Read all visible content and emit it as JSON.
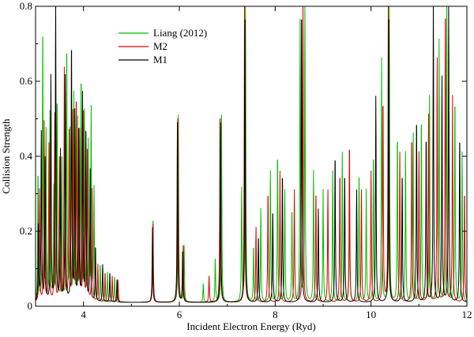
{
  "chart_data": {
    "type": "line",
    "title": "",
    "xlabel": "Incident Electron Energy (Ryd)",
    "ylabel": "Collision Strength",
    "xlim": [
      3,
      12
    ],
    "ylim": [
      0,
      0.8
    ],
    "x_ticks": [
      4,
      6,
      8,
      10,
      12
    ],
    "y_ticks": [
      0,
      0.2,
      0.4,
      0.6,
      0.8
    ],
    "x_tick_labels": [
      "4",
      "6",
      "8",
      "10",
      "12"
    ],
    "y_tick_labels": [
      "0",
      "0.2",
      "0.4",
      "0.6",
      "0.8"
    ],
    "grid": false,
    "legend_position": "top-left",
    "background_level": 0.01,
    "series": [
      {
        "name": "Liang (2012)",
        "color": "#00c000",
        "peaks": [
          [
            3.05,
            0.35
          ],
          [
            3.15,
            0.74
          ],
          [
            3.22,
            0.45
          ],
          [
            3.3,
            0.5
          ],
          [
            3.38,
            0.3
          ],
          [
            3.45,
            0.55
          ],
          [
            3.55,
            0.4
          ],
          [
            3.65,
            0.69
          ],
          [
            3.72,
            0.45
          ],
          [
            3.8,
            0.55
          ],
          [
            3.88,
            0.48
          ],
          [
            3.95,
            0.6
          ],
          [
            4.02,
            0.5
          ],
          [
            4.1,
            0.42
          ],
          [
            4.16,
            0.51
          ],
          [
            4.22,
            0.3
          ],
          [
            4.35,
            0.1
          ],
          [
            4.5,
            0.08
          ],
          [
            4.65,
            0.07
          ],
          [
            5.45,
            0.23
          ],
          [
            5.98,
            0.5
          ],
          [
            6.1,
            0.15
          ],
          [
            6.5,
            0.05
          ],
          [
            6.75,
            0.12
          ],
          [
            6.88,
            0.5
          ],
          [
            7.3,
            0.3
          ],
          [
            7.38,
            0.8
          ],
          [
            7.55,
            0.15
          ],
          [
            7.7,
            0.25
          ],
          [
            7.9,
            0.35
          ],
          [
            8.05,
            0.4
          ],
          [
            8.2,
            0.3
          ],
          [
            8.35,
            0.25
          ],
          [
            8.52,
            0.75
          ],
          [
            8.62,
            0.8
          ],
          [
            8.8,
            0.35
          ],
          [
            9.0,
            0.3
          ],
          [
            9.2,
            0.35
          ],
          [
            9.4,
            0.4
          ],
          [
            9.55,
            0.3
          ],
          [
            9.75,
            0.35
          ],
          [
            9.9,
            0.3
          ],
          [
            10.05,
            0.4
          ],
          [
            10.22,
            0.65
          ],
          [
            10.38,
            0.8
          ],
          [
            10.55,
            0.45
          ],
          [
            10.72,
            0.4
          ],
          [
            10.88,
            0.45
          ],
          [
            11.05,
            0.5
          ],
          [
            11.22,
            0.55
          ],
          [
            11.42,
            0.7
          ],
          [
            11.58,
            0.8
          ],
          [
            11.75,
            0.55
          ],
          [
            11.9,
            0.4
          ]
        ]
      },
      {
        "name": "M2",
        "color": "#e00000",
        "peaks": [
          [
            3.08,
            0.3
          ],
          [
            3.18,
            0.48
          ],
          [
            3.28,
            0.42
          ],
          [
            3.4,
            0.5
          ],
          [
            3.5,
            0.38
          ],
          [
            3.6,
            0.62
          ],
          [
            3.7,
            0.45
          ],
          [
            3.78,
            0.5
          ],
          [
            3.85,
            0.55
          ],
          [
            3.92,
            0.45
          ],
          [
            4.0,
            0.5
          ],
          [
            4.08,
            0.4
          ],
          [
            4.18,
            0.3
          ],
          [
            4.3,
            0.1
          ],
          [
            4.45,
            0.08
          ],
          [
            4.6,
            0.07
          ],
          [
            4.72,
            0.06
          ],
          [
            5.45,
            0.22
          ],
          [
            5.97,
            0.52
          ],
          [
            6.08,
            0.15
          ],
          [
            6.62,
            0.07
          ],
          [
            6.85,
            0.52
          ],
          [
            7.36,
            0.8
          ],
          [
            7.6,
            0.2
          ],
          [
            7.85,
            0.3
          ],
          [
            8.1,
            0.35
          ],
          [
            8.4,
            0.3
          ],
          [
            8.58,
            0.8
          ],
          [
            8.85,
            0.3
          ],
          [
            9.1,
            0.3
          ],
          [
            9.35,
            0.35
          ],
          [
            9.55,
            0.43
          ],
          [
            9.8,
            0.3
          ],
          [
            10.0,
            0.35
          ],
          [
            10.25,
            0.55
          ],
          [
            10.36,
            0.8
          ],
          [
            10.6,
            0.4
          ],
          [
            10.85,
            0.45
          ],
          [
            11.0,
            0.4
          ],
          [
            11.2,
            0.5
          ],
          [
            11.38,
            0.65
          ],
          [
            11.55,
            0.8
          ],
          [
            11.7,
            0.55
          ],
          [
            11.95,
            0.3
          ]
        ]
      },
      {
        "name": "M1",
        "color": "#000000",
        "peaks": [
          [
            3.06,
            0.2
          ],
          [
            3.12,
            0.45
          ],
          [
            3.2,
            0.38
          ],
          [
            3.32,
            0.6
          ],
          [
            3.42,
            0.8
          ],
          [
            3.52,
            0.4
          ],
          [
            3.62,
            0.6
          ],
          [
            3.75,
            0.7
          ],
          [
            3.82,
            0.5
          ],
          [
            3.9,
            0.45
          ],
          [
            3.98,
            0.55
          ],
          [
            4.05,
            0.47
          ],
          [
            4.14,
            0.35
          ],
          [
            4.25,
            0.15
          ],
          [
            4.4,
            0.1
          ],
          [
            4.55,
            0.08
          ],
          [
            4.7,
            0.06
          ],
          [
            5.44,
            0.2
          ],
          [
            5.96,
            0.48
          ],
          [
            6.07,
            0.14
          ],
          [
            6.86,
            0.48
          ],
          [
            7.37,
            0.8
          ],
          [
            7.65,
            0.18
          ],
          [
            7.95,
            0.25
          ],
          [
            8.15,
            0.35
          ],
          [
            8.55,
            0.8
          ],
          [
            8.9,
            0.25
          ],
          [
            9.25,
            0.4
          ],
          [
            9.45,
            0.35
          ],
          [
            9.7,
            0.3
          ],
          [
            10.1,
            0.55
          ],
          [
            10.37,
            0.8
          ],
          [
            10.65,
            0.35
          ],
          [
            10.95,
            0.5
          ],
          [
            11.15,
            0.45
          ],
          [
            11.3,
            0.8
          ],
          [
            11.48,
            0.6
          ],
          [
            11.62,
            0.8
          ],
          [
            11.85,
            0.45
          ]
        ]
      }
    ]
  }
}
